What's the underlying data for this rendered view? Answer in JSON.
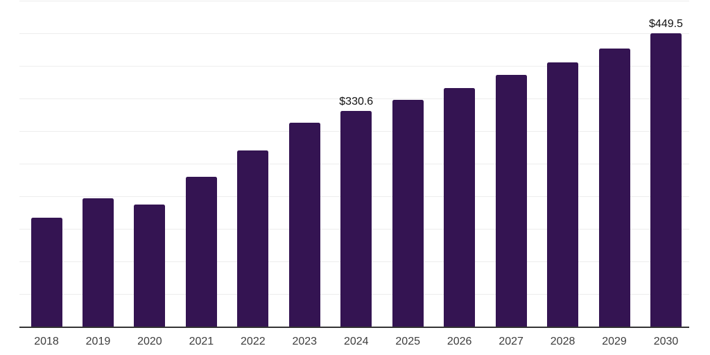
{
  "chart_data": {
    "type": "bar",
    "categories": [
      "2018",
      "2019",
      "2020",
      "2021",
      "2022",
      "2023",
      "2024",
      "2025",
      "2026",
      "2027",
      "2028",
      "2029",
      "2030"
    ],
    "values": [
      167.3,
      196.5,
      186.9,
      229.4,
      269.7,
      313.3,
      330.6,
      348.3,
      366.4,
      386.6,
      405.7,
      426.9,
      449.5
    ],
    "data_labels": {
      "2024": "$330.6",
      "2030": "$449.5"
    },
    "ylim": [
      0,
      500
    ],
    "gridline_step": 50,
    "grid": "horizontal-only",
    "legend": "none",
    "y_axis_tick_labels": "none",
    "bar_color": "#341452",
    "background_color": "#ffffff",
    "gridline_color": "#ededed",
    "axis_line_color": "#333333",
    "value_label_color": "#111111",
    "tick_label_color": "#3d3d3d"
  }
}
